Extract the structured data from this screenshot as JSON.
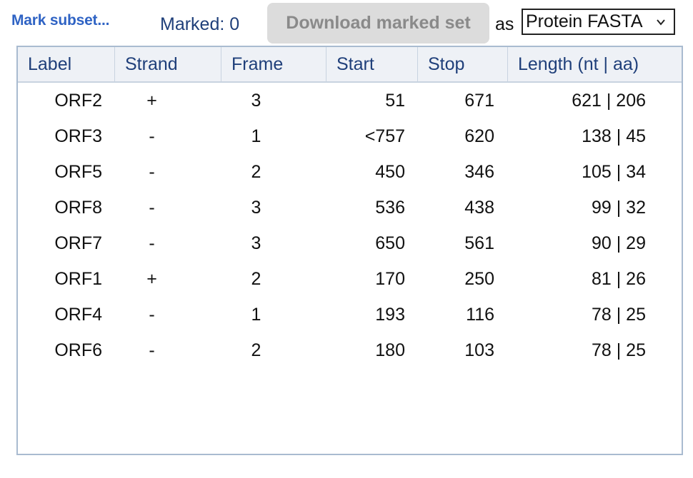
{
  "toolbar": {
    "mark_subset_label": "Mark subset...",
    "marked_label": "Marked: 0",
    "download_label": "Download marked set",
    "as_label": "as",
    "format_selected": "Protein FASTA"
  },
  "table": {
    "columns": [
      "Label",
      "Strand",
      "Frame",
      "Start",
      "Stop",
      "Length (nt | aa)"
    ],
    "rows": [
      [
        "ORF2",
        "+",
        "3",
        "51",
        "671",
        "621 | 206"
      ],
      [
        "ORF3",
        "-",
        "1",
        "<757",
        "620",
        "138 | 45"
      ],
      [
        "ORF5",
        "-",
        "2",
        "450",
        "346",
        "105 | 34"
      ],
      [
        "ORF8",
        "-",
        "3",
        "536",
        "438",
        "99 | 32"
      ],
      [
        "ORF7",
        "-",
        "3",
        "650",
        "561",
        "90 | 29"
      ],
      [
        "ORF1",
        "+",
        "2",
        "170",
        "250",
        "81 | 26"
      ],
      [
        "ORF4",
        "-",
        "1",
        "193",
        "116",
        "78 | 25"
      ],
      [
        "ORF6",
        "-",
        "2",
        "180",
        "103",
        "78 | 25"
      ]
    ]
  },
  "colors": {
    "link": "#2f63c4",
    "header_text": "#1f3f7a",
    "header_bg": "#eef1f6",
    "border": "#a9bbd0",
    "disabled_button_bg": "#dcdcdc"
  },
  "icons": {
    "select_arrow": "chevron-down-icon"
  }
}
